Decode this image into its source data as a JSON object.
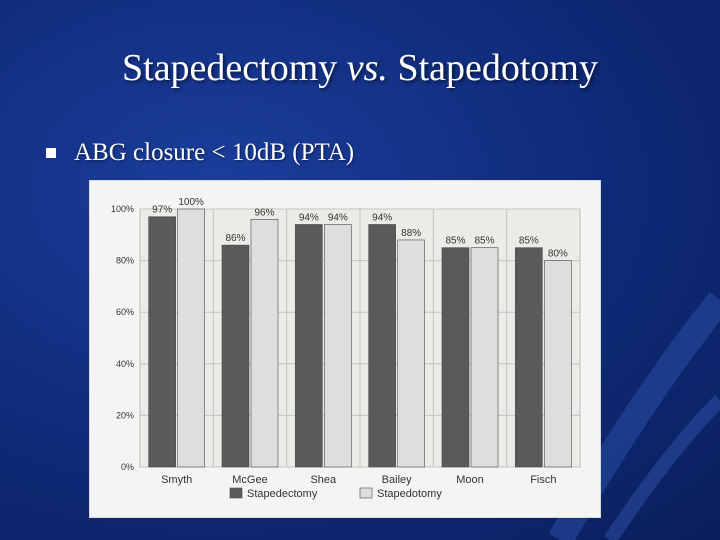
{
  "slide": {
    "title_main": "Stapedectomy",
    "title_vs": "vs.",
    "title_end": "Stapedotomy",
    "bullet_text": "ABG closure < 10dB (PTA)"
  },
  "colors": {
    "background": "#0f2a78",
    "stapedectomy": "#5a5a5a",
    "stapedotomy": "#dedede"
  },
  "chart_data": {
    "type": "bar",
    "title": "",
    "xlabel": "",
    "ylabel": "",
    "categories": [
      "Smyth",
      "McGee",
      "Shea",
      "Bailey",
      "Moon",
      "Fisch"
    ],
    "series": [
      {
        "name": "Stapedectomy",
        "values": [
          97,
          86,
          94,
          94,
          85,
          85
        ],
        "labels": [
          "97%",
          "86%",
          "94%",
          "94%",
          "85%",
          "85%"
        ]
      },
      {
        "name": "Stapedotomy",
        "values": [
          100,
          96,
          94,
          88,
          85,
          80
        ],
        "labels": [
          "100%",
          "96%",
          "94%",
          "88%",
          "85%",
          "80%"
        ]
      }
    ],
    "ylim": [
      0,
      100
    ],
    "yticks": [
      0,
      20,
      40,
      60,
      80,
      100
    ],
    "ytick_labels": [
      "0%",
      "20%",
      "40%",
      "60%",
      "80%",
      "100%"
    ],
    "grid": true,
    "legend": "bottom"
  }
}
